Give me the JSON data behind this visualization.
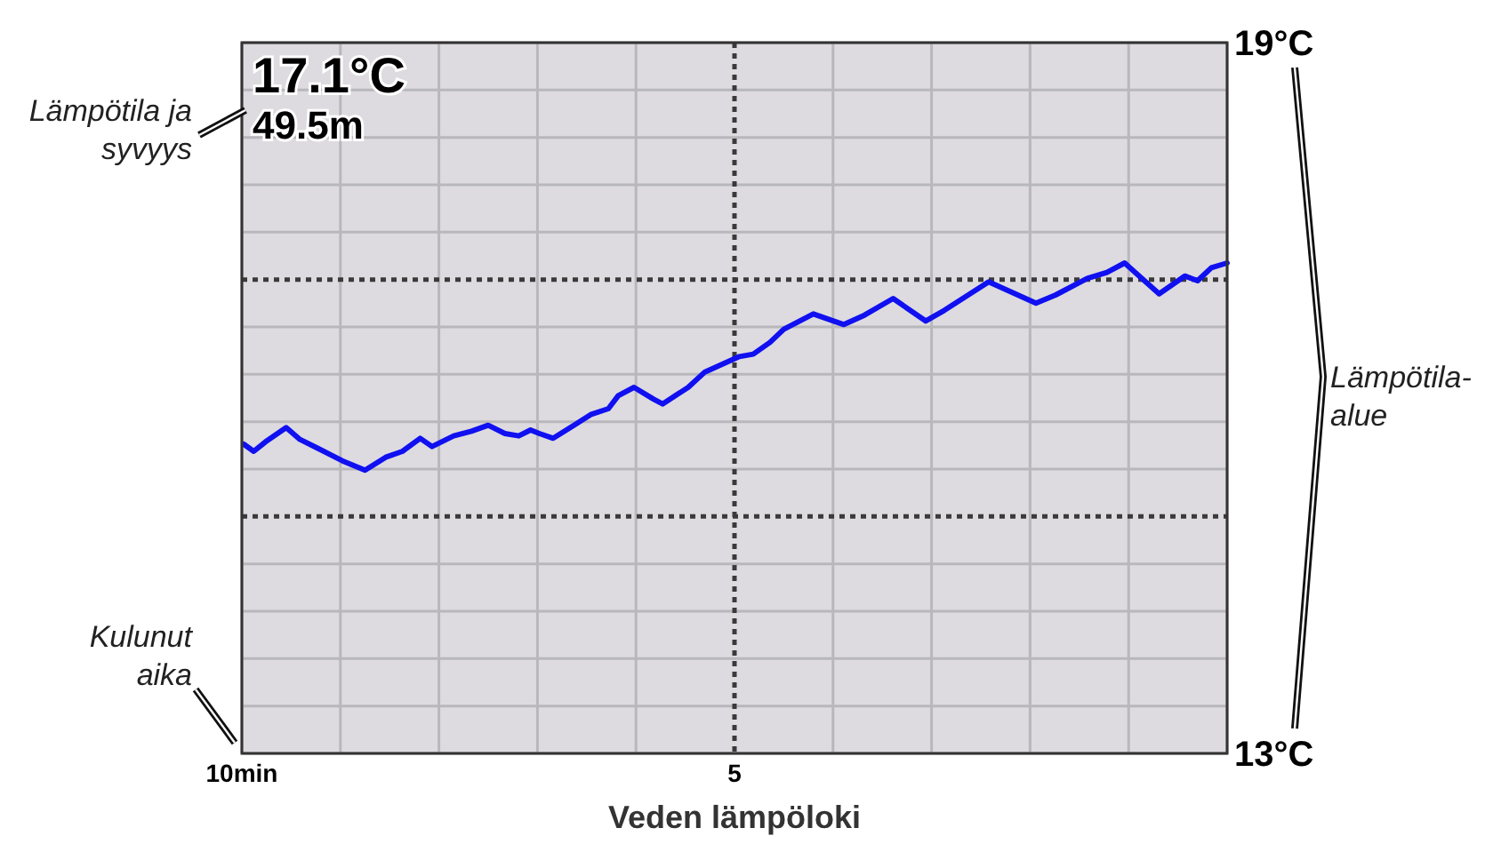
{
  "chart_data": {
    "type": "line",
    "title": "Veden lämpöloki",
    "x": [
      9.98,
      9.88,
      9.76,
      9.55,
      9.41,
      9.24,
      8.98,
      8.75,
      8.54,
      8.37,
      8.19,
      8.07,
      7.85,
      7.67,
      7.5,
      7.33,
      7.19,
      7.07,
      6.98,
      6.84,
      6.63,
      6.46,
      6.28,
      6.18,
      6.02,
      5.82,
      5.73,
      5.47,
      5.3,
      4.95,
      4.81,
      4.64,
      4.5,
      4.2,
      3.89,
      3.68,
      3.39,
      3.06,
      2.87,
      2.42,
      1.94,
      1.74,
      1.42,
      1.22,
      1.04,
      0.69,
      0.43,
      0.3,
      0.16,
      0
    ],
    "series": [
      {
        "color": "#1010f0",
        "values": [
          15.61,
          15.55,
          15.63,
          15.75,
          15.65,
          15.58,
          15.47,
          15.39,
          15.5,
          15.55,
          15.66,
          15.59,
          15.68,
          15.72,
          15.77,
          15.7,
          15.68,
          15.73,
          15.7,
          15.66,
          15.77,
          15.86,
          15.91,
          16.02,
          16.09,
          15.99,
          15.95,
          16.09,
          16.22,
          16.35,
          16.37,
          16.47,
          16.58,
          16.71,
          16.62,
          16.7,
          16.84,
          16.65,
          16.74,
          16.98,
          16.8,
          16.87,
          17.01,
          17.06,
          17.14,
          16.88,
          17.03,
          16.99,
          17.1,
          17.14
        ]
      }
    ],
    "xlim": [
      10,
      0
    ],
    "xticks": [
      {
        "value": 10,
        "label": "10min"
      },
      {
        "value": 9,
        "label": null
      },
      {
        "value": 8,
        "label": null
      },
      {
        "value": 7,
        "label": null
      },
      {
        "value": 6,
        "label": null
      },
      5,
      {
        "value": 4,
        "label": null
      },
      {
        "value": 3,
        "label": null
      },
      {
        "value": 2,
        "label": null
      },
      {
        "value": 1,
        "label": null
      },
      {
        "value": 0,
        "label": null
      }
    ],
    "ylim": [
      13,
      19
    ],
    "yticks": [
      {
        "value": 13,
        "label": "13°C"
      },
      {
        "value": 13.4,
        "label": null
      },
      {
        "value": 13.8,
        "label": null
      },
      {
        "value": 14.2,
        "label": null
      },
      {
        "value": 14.6,
        "label": null
      },
      {
        "value": 15.4,
        "label": null
      },
      {
        "value": 15.8,
        "label": null
      },
      {
        "value": 16.2,
        "label": null
      },
      {
        "value": 16.6,
        "label": null
      },
      {
        "value": 17.4,
        "label": null
      },
      {
        "value": 17.8,
        "label": null
      },
      {
        "value": 18.2,
        "label": null
      },
      {
        "value": 18.6,
        "label": null
      },
      {
        "value": 19,
        "label": "19°C"
      }
    ],
    "grid": true,
    "ref_lines": [
      {
        "axis": "y",
        "value": 15,
        "line_style": "dotted"
      },
      {
        "axis": "y",
        "value": 17,
        "line_style": "dotted"
      },
      {
        "axis": "x",
        "value": 5,
        "line_style": "dotted"
      }
    ],
    "annotations": [
      "17.1°C",
      "49.5m",
      "Lämpötila ja syvyys",
      "Lämpötila-alue",
      "Kulunut aika"
    ]
  }
}
